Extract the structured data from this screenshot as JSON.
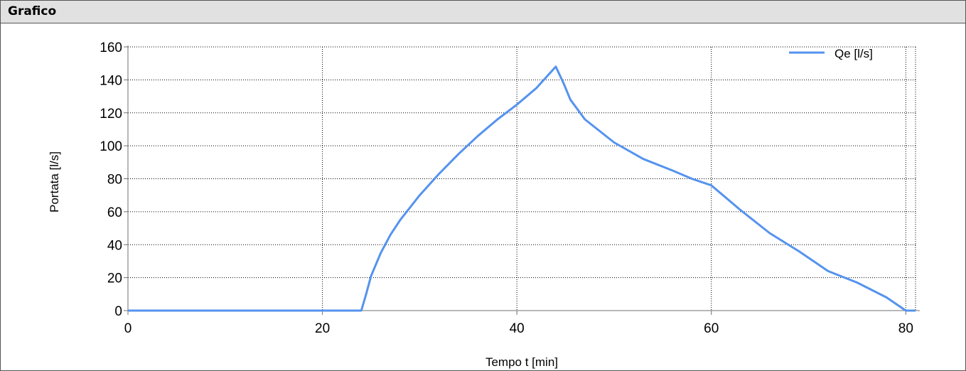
{
  "panel": {
    "title": "Grafico"
  },
  "colors": {
    "series": "#5593ee",
    "grid": "#000000",
    "axis": "#707070"
  },
  "chart_data": {
    "type": "line",
    "title": "",
    "xlabel": "Tempo t [min]",
    "ylabel": "Portata [l/s]",
    "xlim": [
      0,
      81
    ],
    "ylim": [
      0,
      160
    ],
    "grid": true,
    "legend_position": "top-right",
    "x_ticks": [
      "0",
      "20",
      "40",
      "60",
      "80"
    ],
    "y_ticks": [
      "0",
      "20",
      "40",
      "60",
      "80",
      "100",
      "120",
      "140",
      "160"
    ],
    "series": [
      {
        "name": "Qe [l/s]",
        "x": [
          0,
          24,
          24.5,
          25,
          26,
          27,
          28,
          30,
          32,
          34,
          36,
          38,
          40,
          42,
          44,
          44.8,
          45.5,
          47,
          50,
          53,
          56,
          58,
          60,
          63,
          66,
          69,
          72,
          75,
          78,
          80,
          81
        ],
        "y": [
          0,
          0,
          10,
          21,
          35,
          46,
          55,
          70,
          83,
          95,
          106,
          116,
          125,
          135,
          148,
          138,
          128,
          116,
          102,
          92,
          85,
          80,
          76,
          61,
          47,
          36,
          24,
          17,
          8,
          0,
          0
        ]
      }
    ]
  }
}
